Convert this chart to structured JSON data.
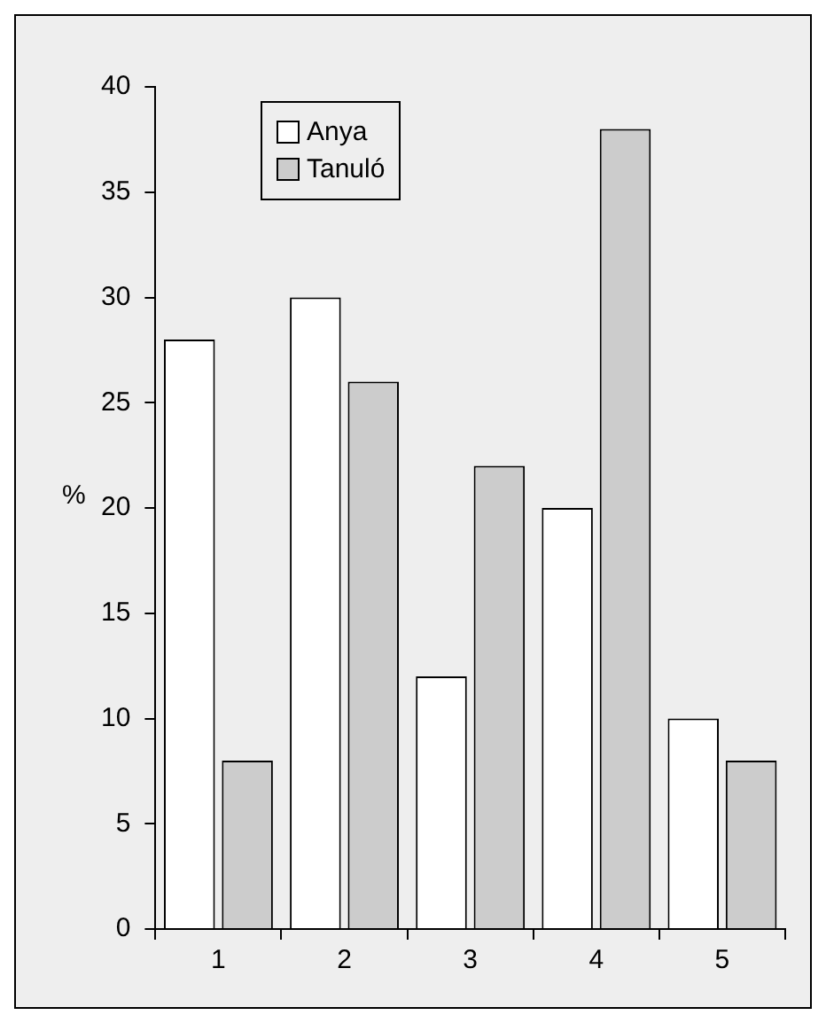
{
  "chart_data": {
    "type": "bar",
    "ylabel": "%",
    "categories": [
      "1",
      "2",
      "3",
      "4",
      "5"
    ],
    "series": [
      {
        "name": "Anya",
        "color": "#ffffff",
        "values": [
          28,
          30,
          12,
          20,
          10
        ]
      },
      {
        "name": "Tanuló",
        "color": "#cccccc",
        "values": [
          8,
          26,
          22,
          38,
          8
        ]
      }
    ],
    "ylim": [
      0,
      40
    ],
    "yticks": [
      0,
      5,
      10,
      15,
      20,
      25,
      30,
      35,
      40
    ],
    "grid": false,
    "legend": "top left"
  }
}
